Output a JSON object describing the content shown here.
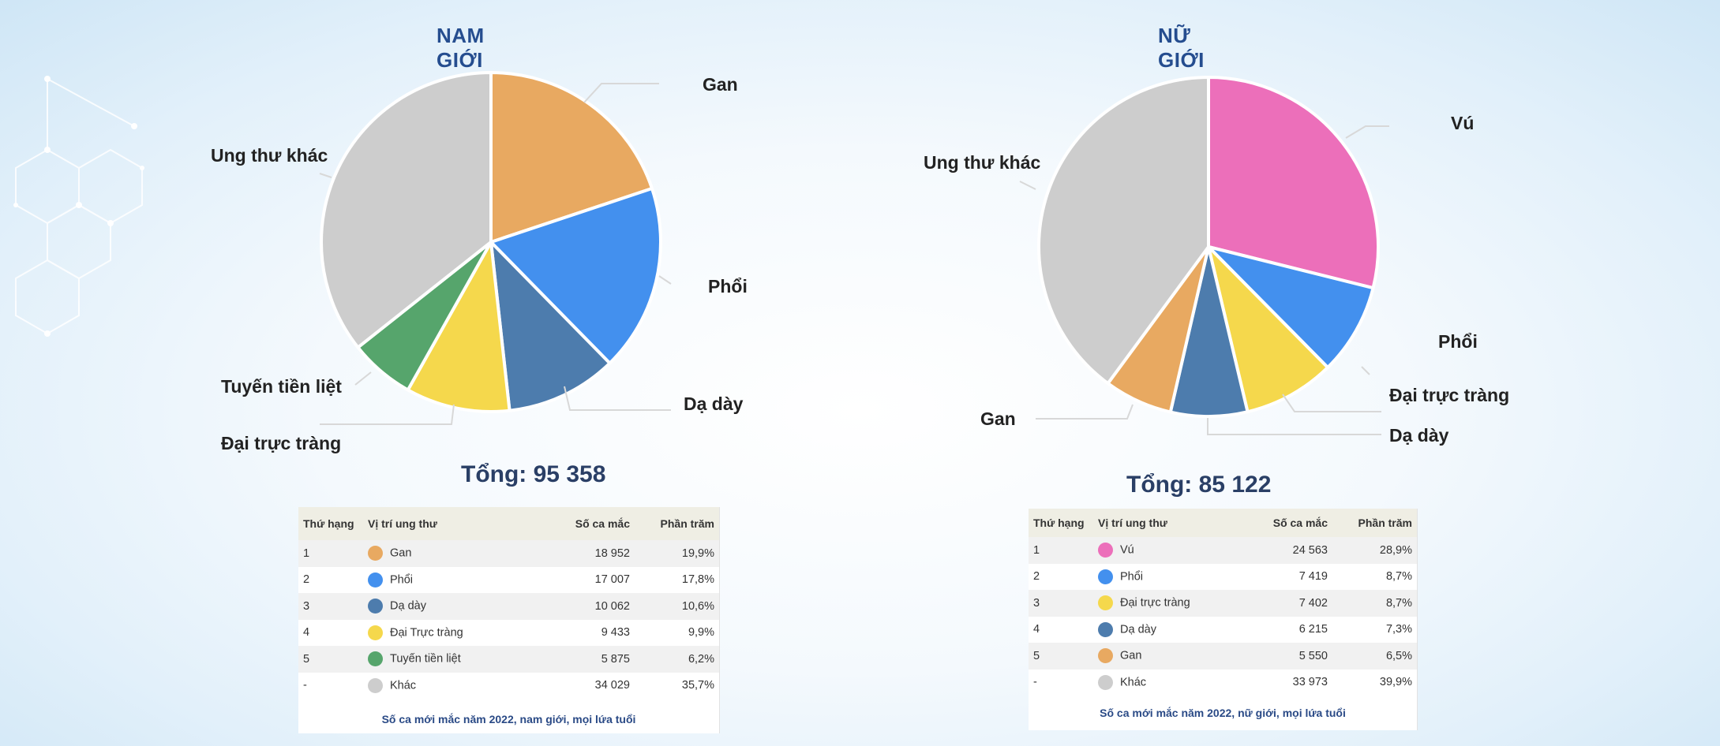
{
  "chart_data": [
    {
      "type": "pie",
      "title": "NAM GIỚI",
      "total_label": "Tổng: 95 358",
      "slices": [
        {
          "label": "Gan",
          "value": 19.9,
          "color": "#e8a961"
        },
        {
          "label": "Phổi",
          "value": 17.8,
          "color": "#4390ee"
        },
        {
          "label": "Dạ dày",
          "value": 10.6,
          "color": "#4d7cad"
        },
        {
          "label": "Đại trực tràng",
          "value": 9.9,
          "color": "#f5d84c"
        },
        {
          "label": "Tuyến tiền liệt",
          "value": 6.2,
          "color": "#56a56c"
        },
        {
          "label": "Ung thư khác",
          "value": 35.7,
          "color": "#cdcdcd"
        }
      ],
      "table": {
        "headers": [
          "Thứ hạng",
          "Vị trí ung thư",
          "Số ca mắc",
          "Phần trăm"
        ],
        "rows": [
          {
            "rank": "1",
            "site": "Gan",
            "cases": "18 952",
            "percent": "19,9%",
            "color": "#e8a961"
          },
          {
            "rank": "2",
            "site": "Phổi",
            "cases": "17 007",
            "percent": "17,8%",
            "color": "#4390ee"
          },
          {
            "rank": "3",
            "site": "Dạ dày",
            "cases": "10 062",
            "percent": "10,6%",
            "color": "#4d7cad"
          },
          {
            "rank": "4",
            "site": "Đại Trực tràng",
            "cases": "9 433",
            "percent": "9,9%",
            "color": "#f5d84c"
          },
          {
            "rank": "5",
            "site": "Tuyến tiền liệt",
            "cases": "5 875",
            "percent": "6,2%",
            "color": "#56a56c"
          },
          {
            "rank": "-",
            "site": "Khác",
            "cases": "34 029",
            "percent": "35,7%",
            "color": "#cdcdcd"
          }
        ],
        "footnote": "Số ca mới mắc năm 2022, nam giới, mọi lứa tuổi"
      }
    },
    {
      "type": "pie",
      "title": "NỮ GIỚI",
      "total_label": "Tổng: 85 122",
      "slices": [
        {
          "label": "Vú",
          "value": 28.9,
          "color": "#ec6fba"
        },
        {
          "label": "Phổi",
          "value": 8.7,
          "color": "#4390ee"
        },
        {
          "label": "Đại trực tràng",
          "value": 8.7,
          "color": "#f5d84c"
        },
        {
          "label": "Dạ dày",
          "value": 7.3,
          "color": "#4d7cad"
        },
        {
          "label": "Gan",
          "value": 6.5,
          "color": "#e8a961"
        },
        {
          "label": "Ung thư khác",
          "value": 39.9,
          "color": "#cdcdcd"
        }
      ],
      "table": {
        "headers": [
          "Thứ hạng",
          "Vị trí ung thư",
          "Số ca mắc",
          "Phần trăm"
        ],
        "rows": [
          {
            "rank": "1",
            "site": "Vú",
            "cases": "24 563",
            "percent": "28,9%",
            "color": "#ec6fba"
          },
          {
            "rank": "2",
            "site": "Phổi",
            "cases": "7 419",
            "percent": "8,7%",
            "color": "#4390ee"
          },
          {
            "rank": "3",
            "site": "Đại trực tràng",
            "cases": "7 402",
            "percent": "8,7%",
            "color": "#f5d84c"
          },
          {
            "rank": "4",
            "site": "Dạ dày",
            "cases": "6 215",
            "percent": "7,3%",
            "color": "#4d7cad"
          },
          {
            "rank": "5",
            "site": "Gan",
            "cases": "5 550",
            "percent": "6,5%",
            "color": "#e8a961"
          },
          {
            "rank": "-",
            "site": "Khác",
            "cases": "33 973",
            "percent": "39,9%",
            "color": "#cdcdcd"
          }
        ],
        "footnote": "Số ca mới mắc năm 2022, nữ giới, mọi lứa tuổi"
      }
    }
  ]
}
